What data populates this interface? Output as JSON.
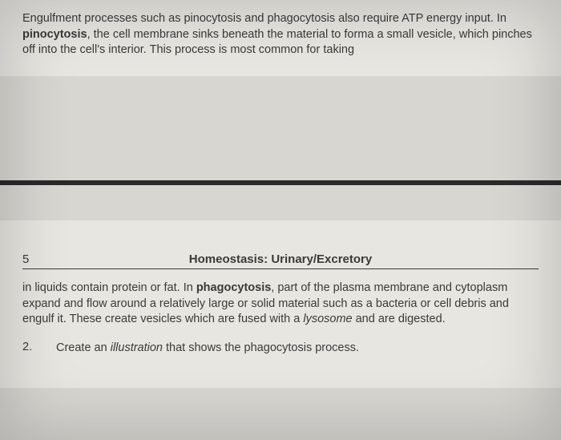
{
  "top": {
    "para_pre": "Engulfment processes such as pinocytosis and phagocytosis also require ATP energy input. In ",
    "bold1": "pinocytosis",
    "para_post": ", the cell membrane sinks beneath the material to forma a small vesicle, which pinches off into the cell's interior. This process is most common for taking"
  },
  "header": {
    "page_number": "5",
    "title": "Homeostasis: Urinary/Excretory"
  },
  "bottom": {
    "para_pre": "in liquids contain protein or fat. In ",
    "bold1": "phagocytosis",
    "para_mid1": ", part of the plasma membrane and cytoplasm expand and flow around a relatively large or solid material such as a bacteria or cell debris and engulf it. These create vesicles which are fused with a ",
    "italic1": "lysosome",
    "para_post": " and are digested."
  },
  "question": {
    "number": "2.",
    "pre": "Create an ",
    "italic": "illustration",
    "post": " that shows the phagocytosis process."
  },
  "colors": {
    "page_bg": "#e8e6e1",
    "body_bg": "#d8d6d1",
    "text": "#3a3a38",
    "divider": "#2a2a2a"
  }
}
